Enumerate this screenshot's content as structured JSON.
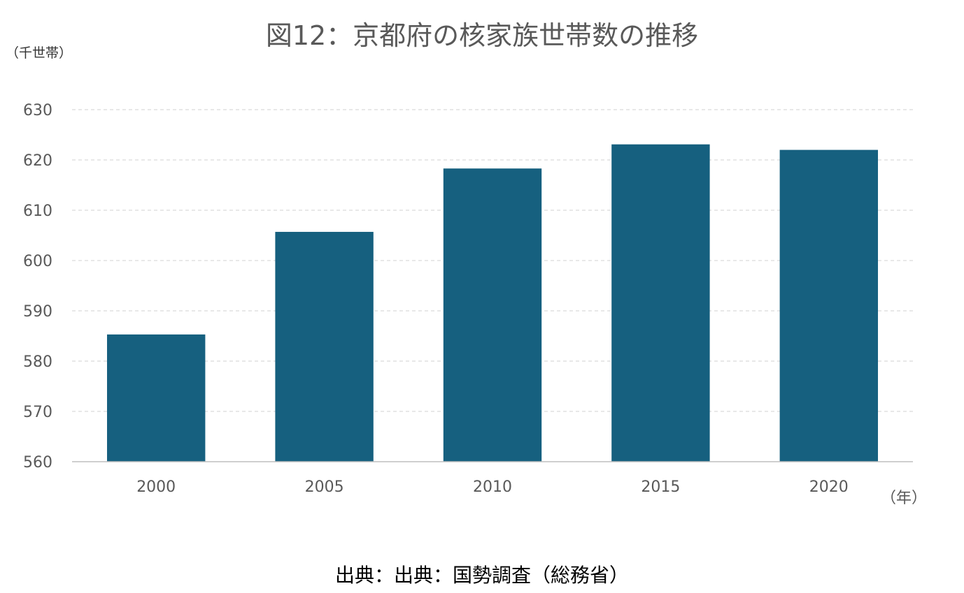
{
  "chart_data": {
    "type": "bar",
    "title": "図12：京都府の核家族世帯数の推移",
    "ylabel": "（千世帯）",
    "xlabel": "（年）",
    "categories": [
      "2000",
      "2005",
      "2010",
      "2015",
      "2020"
    ],
    "series": [
      {
        "values": [
          585.3,
          605.7,
          618.3,
          623.1,
          622.0
        ]
      }
    ],
    "ylim": [
      560,
      630
    ],
    "yticks": [
      "560",
      "570",
      "580",
      "590",
      "600",
      "610",
      "620",
      "630"
    ],
    "grid": true,
    "bar_color": "#16607f",
    "source": "出典：出典：国勢調査（総務省）"
  }
}
